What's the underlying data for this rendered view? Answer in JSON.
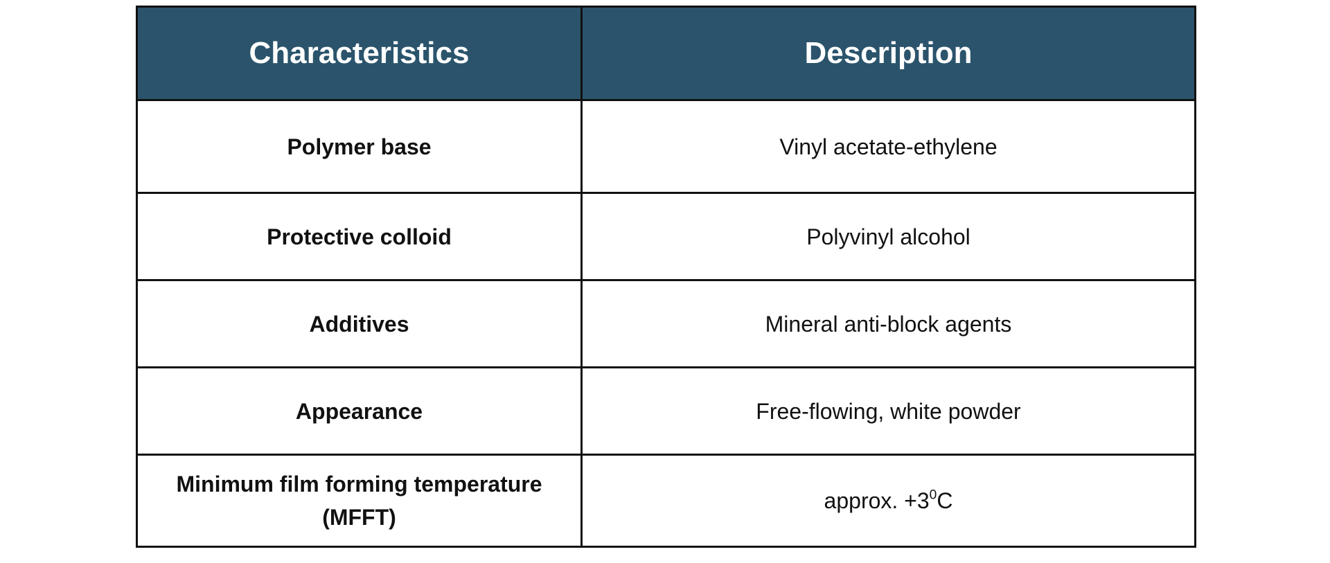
{
  "table": {
    "headers": [
      "Characteristics",
      "Description"
    ],
    "rows": [
      {
        "characteristic": "Polymer base",
        "description": "Vinyl acetate-ethylene"
      },
      {
        "characteristic": "Protective colloid",
        "description": "Polyvinyl alcohol"
      },
      {
        "characteristic": "Additives",
        "description": "Mineral anti-block agents"
      },
      {
        "characteristic": "Appearance",
        "description": "Free-flowing, white powder"
      },
      {
        "characteristic": "Minimum film forming temperature (MFFT)",
        "description_prefix": "approx. +3",
        "description_sup": "0",
        "description_suffix": "C"
      }
    ]
  },
  "colors": {
    "header_bg": "#2b546c",
    "header_text": "#ffffff",
    "border": "#111111"
  }
}
